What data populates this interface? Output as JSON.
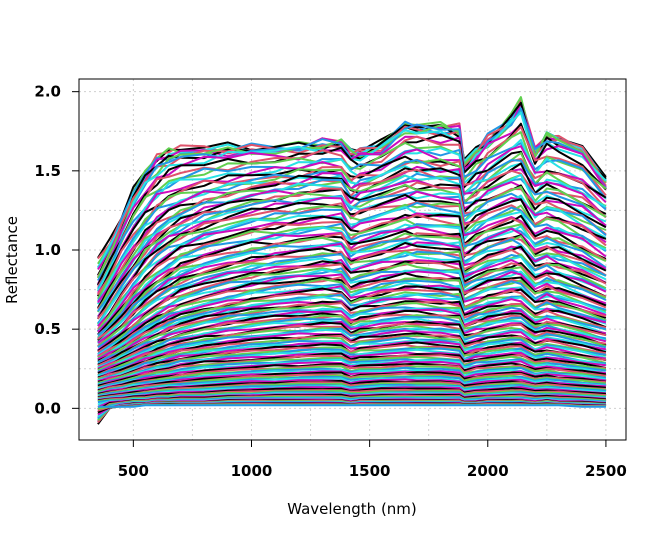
{
  "chart_data": {
    "type": "line",
    "title": "",
    "xlabel": "Wavelength (nm)",
    "ylabel": "Reflectance",
    "xlim": [
      270,
      2585
    ],
    "ylim": [
      -0.2,
      2.08
    ],
    "x_ticks": [
      500,
      1000,
      1500,
      2000,
      2500
    ],
    "x_tick_labels": [
      "500",
      "1000",
      "1500",
      "2000",
      "2500"
    ],
    "y_ticks": [
      0.0,
      0.5,
      1.0,
      1.5,
      2.0
    ],
    "y_tick_labels": [
      "0.0",
      "0.5",
      "1.0",
      "1.5",
      "2.0"
    ],
    "grid": true,
    "legend": "none",
    "palette": [
      "#000000",
      "#DF536B",
      "#61D04F",
      "#2297E6",
      "#28E2E5",
      "#CD0BBC"
    ],
    "wavelength_nm": [
      350,
      400,
      450,
      500,
      550,
      600,
      650,
      700,
      800,
      900,
      1000,
      1100,
      1200,
      1300,
      1380,
      1420,
      1460,
      1550,
      1650,
      1700,
      1800,
      1880,
      1900,
      1950,
      2000,
      2100,
      2140,
      2200,
      2250,
      2300,
      2400,
      2500
    ],
    "series": [
      {
        "values": [
          0.95,
          1.05,
          1.2,
          1.38,
          1.5,
          1.6,
          1.63,
          1.64,
          1.64,
          1.64,
          1.64,
          1.64,
          1.65,
          1.67,
          1.68,
          1.62,
          1.62,
          1.67,
          1.8,
          1.78,
          1.78,
          1.76,
          1.55,
          1.62,
          1.7,
          1.84,
          1.96,
          1.62,
          1.72,
          1.7,
          1.64,
          1.44
        ]
      },
      {
        "values": [
          0.8,
          0.95,
          1.12,
          1.3,
          1.42,
          1.5,
          1.55,
          1.58,
          1.6,
          1.62,
          1.63,
          1.63,
          1.64,
          1.66,
          1.67,
          1.6,
          1.6,
          1.64,
          1.76,
          1.76,
          1.76,
          1.74,
          1.52,
          1.6,
          1.68,
          1.8,
          1.88,
          1.6,
          1.7,
          1.68,
          1.62,
          1.42
        ]
      },
      {
        "values": [
          0.72,
          0.85,
          1.0,
          1.12,
          1.22,
          1.3,
          1.35,
          1.38,
          1.42,
          1.44,
          1.46,
          1.48,
          1.5,
          1.52,
          1.52,
          1.45,
          1.46,
          1.5,
          1.58,
          1.58,
          1.56,
          1.55,
          1.4,
          1.45,
          1.5,
          1.6,
          1.62,
          1.45,
          1.5,
          1.48,
          1.42,
          1.3
        ]
      },
      {
        "values": [
          0.6,
          0.72,
          0.84,
          0.95,
          1.05,
          1.12,
          1.18,
          1.22,
          1.28,
          1.32,
          1.36,
          1.38,
          1.4,
          1.42,
          1.42,
          1.34,
          1.36,
          1.4,
          1.46,
          1.46,
          1.45,
          1.44,
          1.28,
          1.33,
          1.38,
          1.45,
          1.46,
          1.32,
          1.36,
          1.34,
          1.28,
          1.18
        ]
      },
      {
        "values": [
          0.5,
          0.6,
          0.72,
          0.82,
          0.92,
          1.0,
          1.06,
          1.1,
          1.16,
          1.2,
          1.24,
          1.26,
          1.28,
          1.3,
          1.3,
          1.22,
          1.24,
          1.28,
          1.32,
          1.32,
          1.31,
          1.3,
          1.15,
          1.2,
          1.24,
          1.3,
          1.3,
          1.18,
          1.22,
          1.2,
          1.14,
          1.05
        ]
      },
      {
        "values": [
          0.45,
          0.52,
          0.6,
          0.7,
          0.78,
          0.85,
          0.9,
          0.95,
          1.0,
          1.04,
          1.08,
          1.1,
          1.12,
          1.14,
          1.14,
          1.06,
          1.08,
          1.12,
          1.16,
          1.16,
          1.15,
          1.14,
          1.0,
          1.05,
          1.09,
          1.14,
          1.14,
          1.03,
          1.06,
          1.04,
          0.98,
          0.9
        ]
      },
      {
        "values": [
          0.4,
          0.46,
          0.52,
          0.6,
          0.67,
          0.73,
          0.78,
          0.82,
          0.87,
          0.91,
          0.94,
          0.96,
          0.98,
          1.0,
          1.0,
          0.93,
          0.95,
          0.98,
          1.02,
          1.02,
          1.01,
          1.0,
          0.88,
          0.92,
          0.96,
          1.0,
          1.0,
          0.9,
          0.93,
          0.91,
          0.86,
          0.79
        ]
      },
      {
        "values": [
          0.34,
          0.39,
          0.44,
          0.5,
          0.56,
          0.61,
          0.65,
          0.69,
          0.74,
          0.78,
          0.81,
          0.83,
          0.85,
          0.87,
          0.87,
          0.8,
          0.82,
          0.85,
          0.88,
          0.88,
          0.87,
          0.86,
          0.76,
          0.8,
          0.83,
          0.87,
          0.87,
          0.78,
          0.81,
          0.79,
          0.74,
          0.68
        ]
      },
      {
        "values": [
          0.3,
          0.34,
          0.38,
          0.43,
          0.48,
          0.52,
          0.56,
          0.59,
          0.63,
          0.66,
          0.69,
          0.71,
          0.73,
          0.74,
          0.74,
          0.68,
          0.7,
          0.73,
          0.76,
          0.76,
          0.75,
          0.74,
          0.65,
          0.68,
          0.71,
          0.74,
          0.74,
          0.66,
          0.69,
          0.67,
          0.63,
          0.58
        ]
      },
      {
        "values": [
          0.26,
          0.29,
          0.33,
          0.37,
          0.41,
          0.44,
          0.47,
          0.5,
          0.54,
          0.57,
          0.59,
          0.61,
          0.62,
          0.63,
          0.63,
          0.58,
          0.6,
          0.62,
          0.64,
          0.64,
          0.63,
          0.62,
          0.55,
          0.58,
          0.6,
          0.63,
          0.63,
          0.56,
          0.58,
          0.57,
          0.53,
          0.49
        ]
      },
      {
        "values": [
          0.22,
          0.25,
          0.28,
          0.31,
          0.34,
          0.37,
          0.4,
          0.42,
          0.45,
          0.47,
          0.49,
          0.51,
          0.52,
          0.53,
          0.53,
          0.48,
          0.5,
          0.52,
          0.54,
          0.54,
          0.53,
          0.52,
          0.46,
          0.48,
          0.5,
          0.53,
          0.53,
          0.47,
          0.49,
          0.48,
          0.45,
          0.41
        ]
      },
      {
        "values": [
          0.18,
          0.2,
          0.22,
          0.25,
          0.28,
          0.3,
          0.32,
          0.34,
          0.36,
          0.38,
          0.4,
          0.41,
          0.42,
          0.43,
          0.43,
          0.39,
          0.41,
          0.42,
          0.44,
          0.44,
          0.43,
          0.42,
          0.37,
          0.39,
          0.41,
          0.43,
          0.43,
          0.38,
          0.4,
          0.39,
          0.36,
          0.33
        ]
      },
      {
        "values": [
          0.14,
          0.16,
          0.18,
          0.2,
          0.22,
          0.24,
          0.25,
          0.27,
          0.29,
          0.3,
          0.31,
          0.32,
          0.33,
          0.34,
          0.34,
          0.31,
          0.32,
          0.33,
          0.34,
          0.34,
          0.34,
          0.33,
          0.29,
          0.31,
          0.32,
          0.34,
          0.34,
          0.3,
          0.31,
          0.3,
          0.28,
          0.26
        ]
      },
      {
        "values": [
          0.1,
          0.12,
          0.13,
          0.15,
          0.16,
          0.17,
          0.18,
          0.19,
          0.21,
          0.22,
          0.23,
          0.24,
          0.24,
          0.25,
          0.25,
          0.23,
          0.24,
          0.24,
          0.25,
          0.25,
          0.25,
          0.24,
          0.21,
          0.23,
          0.24,
          0.25,
          0.25,
          0.22,
          0.23,
          0.22,
          0.21,
          0.19
        ]
      },
      {
        "values": [
          0.07,
          0.08,
          0.09,
          0.1,
          0.11,
          0.12,
          0.13,
          0.13,
          0.14,
          0.15,
          0.16,
          0.16,
          0.17,
          0.17,
          0.17,
          0.15,
          0.16,
          0.17,
          0.17,
          0.17,
          0.17,
          0.16,
          0.14,
          0.15,
          0.16,
          0.17,
          0.17,
          0.15,
          0.16,
          0.15,
          0.14,
          0.13
        ]
      },
      {
        "values": [
          0.04,
          0.05,
          0.05,
          0.06,
          0.06,
          0.07,
          0.07,
          0.08,
          0.08,
          0.09,
          0.09,
          0.1,
          0.1,
          0.1,
          0.1,
          0.09,
          0.09,
          0.1,
          0.1,
          0.1,
          0.1,
          0.1,
          0.08,
          0.09,
          0.09,
          0.1,
          0.1,
          0.09,
          0.09,
          0.09,
          0.08,
          0.07
        ]
      },
      {
        "values": [
          -0.1,
          0.0,
          0.02,
          0.03,
          0.03,
          0.04,
          0.04,
          0.04,
          0.04,
          0.05,
          0.05,
          0.05,
          0.05,
          0.05,
          0.05,
          0.04,
          0.05,
          0.05,
          0.05,
          0.05,
          0.05,
          0.05,
          0.04,
          0.04,
          0.05,
          0.05,
          0.05,
          0.04,
          0.05,
          0.04,
          0.04,
          0.03
        ]
      },
      {
        "values": [
          0.01,
          0.01,
          0.01,
          0.01,
          0.02,
          0.02,
          0.02,
          0.02,
          0.02,
          0.02,
          0.02,
          0.02,
          0.02,
          0.02,
          0.02,
          0.02,
          0.02,
          0.02,
          0.02,
          0.02,
          0.02,
          0.02,
          0.02,
          0.02,
          0.02,
          0.02,
          0.02,
          0.02,
          0.02,
          0.02,
          0.01,
          0.01
        ]
      }
    ]
  }
}
